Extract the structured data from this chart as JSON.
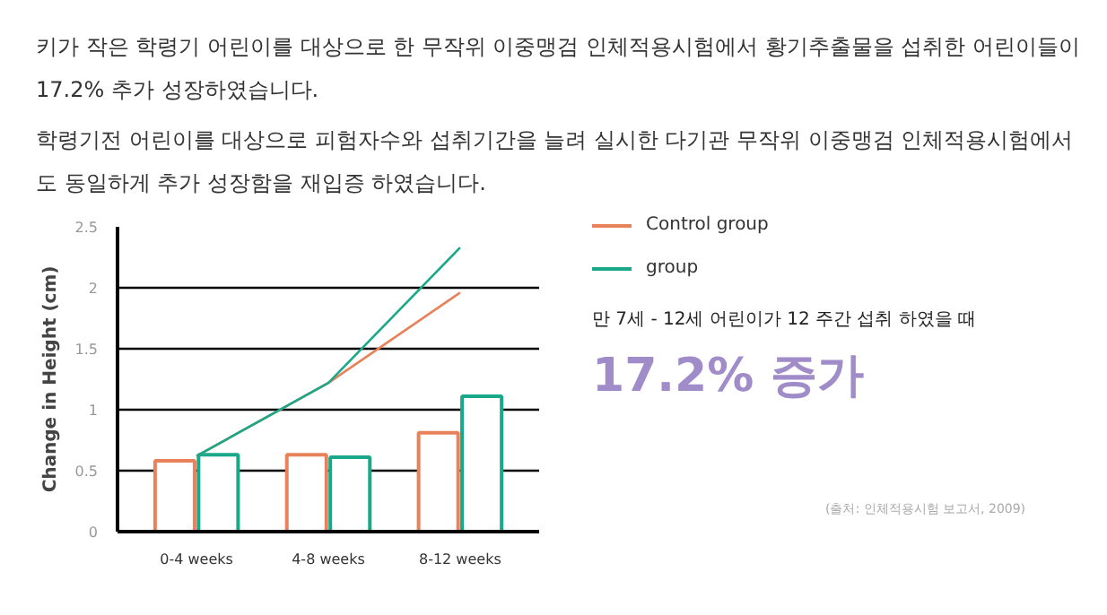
{
  "chart_data": {
    "type": "bar",
    "title": "키가 작은 학령기 어린이를 대상으로 한 무작위 이중맹검 인체적용시험에서 황기추출물을 섭취한 어린이들이 17.2% 추가 성장하였습니다.",
    "subtitle": "학령기전 어린이를 대상으로 피험자수와 섭취기간을 늘려 실시한 다기관 무작위 이중맹검 인체적용시험에서도 동일하게 추가 성장함을 재입증 하였습니다.",
    "ylabel": "Change in Height (cm)",
    "categories": [
      "0-4 weeks",
      "4-8 weeks",
      "8-12 weeks"
    ],
    "series": [
      {
        "color": "#e8825a",
        "values": [
          0.58,
          0.63,
          0.81
        ]
      },
      {
        "color": "#1aa88a",
        "values": [
          0.63,
          0.61,
          1.11
        ]
      },
      {
        "type": "line",
        "name": "Control group",
        "color": "#e8825a",
        "values": [
          0.62,
          1.22,
          1.96
        ]
      },
      {
        "type": "line",
        "name": "group",
        "color": "#1aa88a",
        "values": [
          0.62,
          1.22,
          2.33
        ]
      }
    ],
    "ylim": [
      0,
      2.5
    ],
    "yticks": [
      0,
      0.5,
      1,
      1.5,
      2,
      2.5
    ],
    "grid": "y",
    "legend": "right",
    "annotations": [
      "만 7세  -  12세 어린이가 12 주간 섭취 하였을 때",
      "17.2% 증가",
      "(출처: 인체적용시험 보고서, 2009)"
    ]
  }
}
